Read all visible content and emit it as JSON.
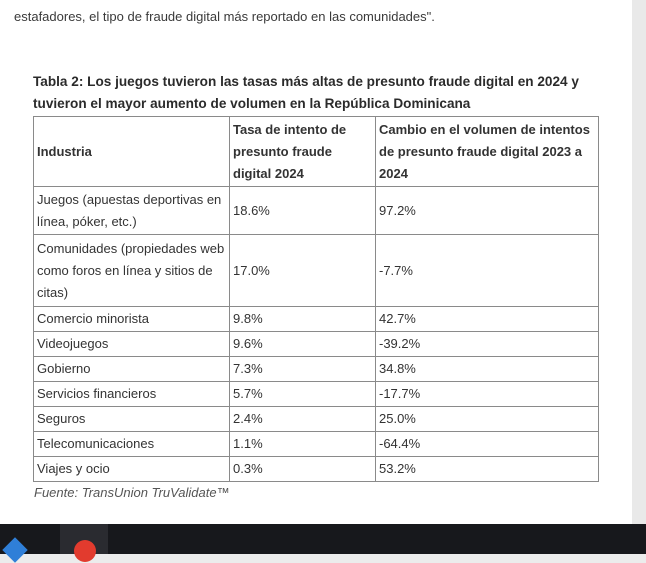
{
  "intro_text": "estafadores, el tipo de fraude digital más reportado en las comunidades\".",
  "table": {
    "title": "Tabla 2: Los juegos tuvieron las tasas más altas de presunto fraude digital en 2024 y tuvieron el mayor aumento de volumen en la República Dominicana",
    "headers": [
      "Industria",
      "Tasa de intento de presunto fraude digital 2024",
      "Cambio en el volumen de intentos de presunto fraude digital 2023 a 2024"
    ],
    "rows": [
      [
        "Juegos (apuestas deportivas en línea, póker, etc.)",
        "18.6%",
        "97.2%"
      ],
      [
        "Comunidades (propiedades web como foros en línea y sitios de citas)",
        "17.0%",
        "-7.7%"
      ],
      [
        "Comercio minorista",
        "9.8%",
        "42.7%"
      ],
      [
        "Videojuegos",
        "9.6%",
        "-39.2%"
      ],
      [
        "Gobierno",
        "7.3%",
        "34.8%"
      ],
      [
        "Servicios financieros",
        "5.7%",
        "-17.7%"
      ],
      [
        "Seguros",
        "2.4%",
        "25.0%"
      ],
      [
        "Telecomunicaciones",
        "1.1%",
        "-64.4%"
      ],
      [
        "Viajes y ocio",
        "0.3%",
        "53.2%"
      ]
    ]
  },
  "source": "Fuente: TransUnion TruValidate™",
  "taskbar": {
    "icons": [
      "app-icon",
      "browser-icon"
    ]
  }
}
